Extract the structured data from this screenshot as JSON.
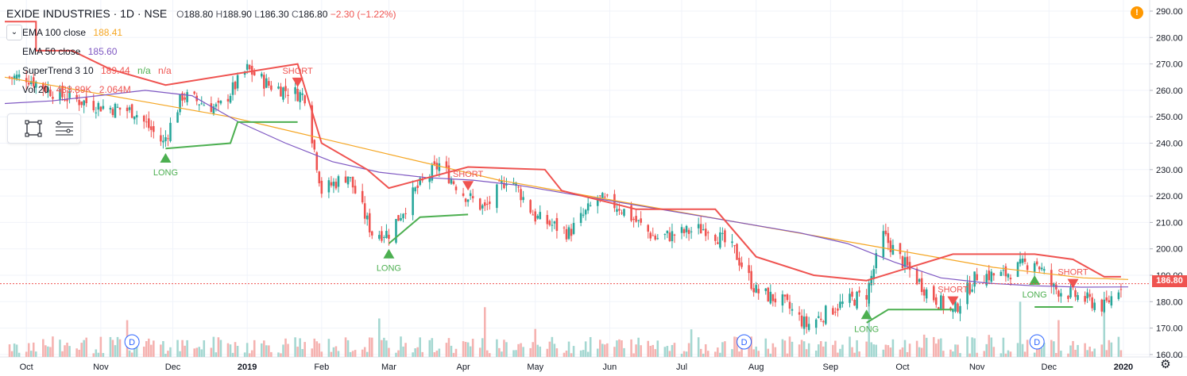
{
  "header": {
    "title": "EXIDE INDUSTRIES · 1D · NSE",
    "ohlc": {
      "o_label": "O",
      "o": "188.80",
      "h_label": "H",
      "h": "188.90",
      "l_label": "L",
      "l": "186.30",
      "c_label": "C",
      "c": "186.80",
      "change": "−2.30 (−1.22%)"
    }
  },
  "indicators": [
    {
      "name": "EMA 100 close",
      "value": "188.41",
      "value2": "",
      "value3": "",
      "color": "#f5a623"
    },
    {
      "name": "EMA 50 close",
      "value": "185.60",
      "value2": "",
      "value3": "",
      "color": "#7e57c2"
    },
    {
      "name": "SuperTrend 3 10",
      "value": "189.44",
      "value2": "n/a",
      "value3": "n/a",
      "color": "#ef5350"
    },
    {
      "name": "Vol 20",
      "value": "438.89K",
      "value2": "2.064M",
      "value3": "",
      "color": "#ef5350"
    }
  ],
  "price_axis": {
    "ticks": [
      "290.00",
      "280.00",
      "270.00",
      "260.00",
      "250.00",
      "240.00",
      "230.00",
      "220.00",
      "210.00",
      "200.00",
      "190.00",
      "180.00",
      "170.00",
      "160.00"
    ],
    "current": "186.80"
  },
  "time_axis": {
    "ticks": [
      "Oct",
      "Nov",
      "Dec",
      "2019",
      "Feb",
      "Mar",
      "Apr",
      "May",
      "Jun",
      "Jul",
      "Aug",
      "Sep",
      "Oct",
      "Nov",
      "Dec",
      "2020"
    ]
  },
  "signal_labels": {
    "long": "LONG",
    "short": "SHORT"
  },
  "dividend_marker": "D",
  "alert_icon": "!",
  "colors": {
    "up": "#26a69a",
    "down": "#ef5350",
    "ema100": "#f5a623",
    "ema50": "#7e57c2",
    "st_up": "#4caf50",
    "st_down": "#ef5350",
    "vol_up": "#a4d7d1",
    "vol_down": "#f5b2b0"
  },
  "chart_data": {
    "type": "candlestick",
    "title": "EXIDE INDUSTRIES · 1D · NSE",
    "ylim": [
      160,
      292
    ],
    "y_ticks": [
      290,
      280,
      270,
      260,
      250,
      240,
      230,
      220,
      210,
      200,
      190,
      180,
      170,
      160
    ],
    "x_ticks": [
      "Oct",
      "Nov",
      "Dec",
      "2019",
      "Feb",
      "Mar",
      "Apr",
      "May",
      "Jun",
      "Jul",
      "Aug",
      "Sep",
      "Oct",
      "Nov",
      "Dec",
      "2020"
    ],
    "close_series": [
      {
        "date": "2018-10-01",
        "close": 265
      },
      {
        "date": "2018-10-15",
        "close": 258
      },
      {
        "date": "2018-11-01",
        "close": 254
      },
      {
        "date": "2018-11-15",
        "close": 252
      },
      {
        "date": "2018-11-27",
        "close": 240
      },
      {
        "date": "2018-12-05",
        "close": 258
      },
      {
        "date": "2018-12-20",
        "close": 253
      },
      {
        "date": "2019-01-01",
        "close": 268
      },
      {
        "date": "2019-01-10",
        "close": 262
      },
      {
        "date": "2019-01-25",
        "close": 258
      },
      {
        "date": "2019-02-01",
        "close": 222
      },
      {
        "date": "2019-02-12",
        "close": 228
      },
      {
        "date": "2019-02-22",
        "close": 206
      },
      {
        "date": "2019-03-01",
        "close": 206
      },
      {
        "date": "2019-03-12",
        "close": 222
      },
      {
        "date": "2019-03-22",
        "close": 232
      },
      {
        "date": "2019-04-01",
        "close": 221
      },
      {
        "date": "2019-04-10",
        "close": 215
      },
      {
        "date": "2019-04-20",
        "close": 228
      },
      {
        "date": "2019-05-01",
        "close": 212
      },
      {
        "date": "2019-05-15",
        "close": 206
      },
      {
        "date": "2019-05-27",
        "close": 219
      },
      {
        "date": "2019-06-05",
        "close": 216
      },
      {
        "date": "2019-06-20",
        "close": 204
      },
      {
        "date": "2019-07-01",
        "close": 206
      },
      {
        "date": "2019-07-12",
        "close": 208
      },
      {
        "date": "2019-07-23",
        "close": 199
      },
      {
        "date": "2019-08-01",
        "close": 184
      },
      {
        "date": "2019-08-12",
        "close": 180
      },
      {
        "date": "2019-08-22",
        "close": 171
      },
      {
        "date": "2019-09-03",
        "close": 178
      },
      {
        "date": "2019-09-16",
        "close": 183
      },
      {
        "date": "2019-09-23",
        "close": 205
      },
      {
        "date": "2019-10-01",
        "close": 195
      },
      {
        "date": "2019-10-12",
        "close": 183
      },
      {
        "date": "2019-10-22",
        "close": 176
      },
      {
        "date": "2019-11-01",
        "close": 190
      },
      {
        "date": "2019-11-12",
        "close": 190
      },
      {
        "date": "2019-11-25",
        "close": 196
      },
      {
        "date": "2019-12-03",
        "close": 185
      },
      {
        "date": "2019-12-13",
        "close": 182
      },
      {
        "date": "2019-12-24",
        "close": 178
      },
      {
        "date": "2019-12-31",
        "close": 186.8
      }
    ],
    "ema100": [
      265,
      262,
      259,
      256,
      253,
      250,
      246,
      242,
      238,
      234,
      230,
      226,
      223,
      220,
      217,
      214,
      211,
      208,
      205,
      202,
      199,
      196,
      193,
      191,
      189,
      188.41
    ],
    "ema50": [
      255,
      256,
      258,
      260,
      258,
      248,
      240,
      233,
      229,
      227,
      226,
      224,
      221,
      218,
      215,
      212,
      209,
      206,
      202,
      195,
      189,
      187,
      186,
      185.5,
      185.6
    ],
    "supertrend": {
      "value": 189.44,
      "long_labels": [
        "2018-11-28",
        "2019-03-01",
        "2019-09-16",
        "2019-11-25"
      ],
      "short_labels": [
        "2019-01-22",
        "2019-04-03",
        "2019-10-22",
        "2019-12-11"
      ]
    },
    "volume": {
      "current": "438.89K",
      "average_20": "2.064M"
    },
    "dividend_markers": 3,
    "last_price": 186.8
  }
}
